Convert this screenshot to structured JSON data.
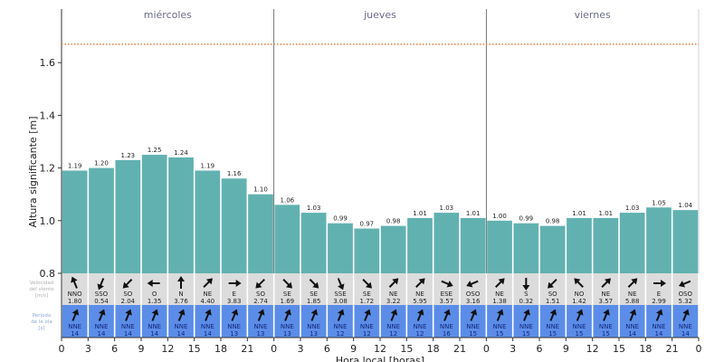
{
  "chart_data": {
    "type": "bar",
    "title": "",
    "xlabel": "Hora local [horas]",
    "ylabel": "Altura significante [m]",
    "ylim": [
      0.8,
      1.72
    ],
    "yticks": [
      "0.8",
      "1.0",
      "1.2",
      "1.4",
      "1.6"
    ],
    "xtick_labels": [
      "0",
      "3",
      "6",
      "9",
      "12",
      "15",
      "18",
      "21",
      "0",
      "3",
      "6",
      "9",
      "12",
      "15",
      "18",
      "21",
      "0",
      "3",
      "6",
      "9",
      "12",
      "15",
      "18",
      "21",
      "0"
    ],
    "days": [
      "miércoles",
      "jueves",
      "viernes"
    ],
    "threshold_line": {
      "value": 1.67,
      "style": "dotted",
      "color": "#e8803a"
    },
    "grid": false,
    "legend": null,
    "categories": [
      "mié 0",
      "mié 3",
      "mié 6",
      "mié 9",
      "mié 12",
      "mié 15",
      "mié 18",
      "mié 21",
      "jue 0",
      "jue 3",
      "jue 6",
      "jue 9",
      "jue 12",
      "jue 15",
      "jue 18",
      "jue 21",
      "vie 0",
      "vie 3",
      "vie 6",
      "vie 9",
      "vie 12",
      "vie 15",
      "vie 18",
      "vie 21"
    ],
    "values": [
      1.19,
      1.2,
      1.23,
      1.25,
      1.24,
      1.19,
      1.16,
      1.1,
      1.06,
      1.03,
      0.99,
      0.97,
      0.98,
      1.01,
      1.03,
      1.01,
      1.0,
      0.99,
      0.98,
      1.01,
      1.01,
      1.03,
      1.05,
      1.04
    ],
    "value_labels": [
      "1.19",
      "1.20",
      "1.23",
      "1.25",
      "1.24",
      "1.19",
      "1.16",
      "1.10",
      "1.06",
      "1.03",
      "0.99",
      "0.97",
      "0.98",
      "1.01",
      "1.03",
      "1.01",
      "1.00",
      "0.99",
      "0.98",
      "1.01",
      "1.01",
      "1.03",
      "1.05",
      "1.04"
    ],
    "wind": {
      "row_label": [
        "Velocidad",
        "del viento",
        "[m/s]"
      ],
      "directions": [
        "NNO",
        "SSO",
        "SO",
        "O",
        "N",
        "NE",
        "E",
        "SO",
        "SE",
        "SE",
        "SSE",
        "SE",
        "NE",
        "NE",
        "ESE",
        "OSO",
        "NE",
        "S",
        "SO",
        "NO",
        "NE",
        "NE",
        "E",
        "OSO"
      ],
      "speeds": [
        "1.80",
        "0.54",
        "2.04",
        "1.35",
        "3.76",
        "4.40",
        "3.83",
        "2.74",
        "1.69",
        "1.85",
        "3.08",
        "1.72",
        "3.22",
        "5.95",
        "3.57",
        "3.16",
        "1.38",
        "0.32",
        "1.51",
        "1.42",
        "3.57",
        "5.88",
        "2.99",
        "5.32"
      ]
    },
    "wave": {
      "row_label": [
        "Periodo",
        "de la ola",
        "[s]"
      ],
      "directions": [
        "NNE",
        "NNE",
        "NNE",
        "NNE",
        "NNE",
        "NNE",
        "NNE",
        "NNE",
        "NNE",
        "NNE",
        "NNE",
        "NNE",
        "NNE",
        "NNE",
        "NNE",
        "NNE",
        "NNE",
        "NNE",
        "NNE",
        "NNE",
        "NNE",
        "NNE",
        "NNE",
        "NNE"
      ],
      "periods": [
        "14",
        "14",
        "14",
        "14",
        "14",
        "14",
        "13",
        "13",
        "13",
        "13",
        "12",
        "12",
        "12",
        "12",
        "16",
        "15",
        "15",
        "15",
        "15",
        "15",
        "15",
        "14",
        "14",
        "14"
      ]
    },
    "colors": {
      "bar": "#62b1b1",
      "wind_row": "#dcdcdc",
      "wave_row": "#5b8de8",
      "threshold": "#e8803a"
    }
  }
}
